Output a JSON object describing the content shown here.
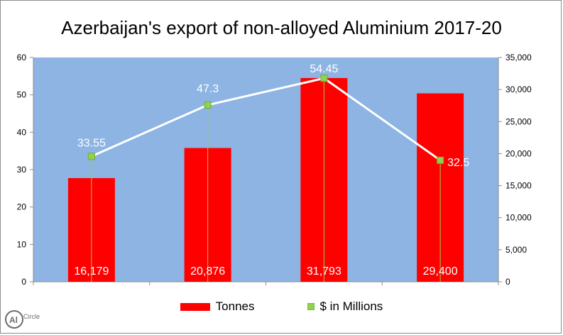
{
  "chart_data": {
    "type": "bar",
    "title": "Azerbaijan's export of non-alloyed Aluminium 2017-20",
    "categories": [
      "",
      "",
      "",
      ""
    ],
    "left_axis": {
      "ticks": [
        "0",
        "10",
        "20",
        "30",
        "40",
        "50",
        "60"
      ],
      "ylim": [
        0,
        60
      ]
    },
    "right_axis": {
      "ticks": [
        "0",
        "5,000",
        "10,000",
        "15,000",
        "20,000",
        "25,000",
        "30,000",
        "35,000"
      ],
      "ylim": [
        0,
        35000
      ]
    },
    "series": [
      {
        "name": "Tonnes",
        "kind": "bar",
        "axis": "right",
        "values": [
          16179,
          20876,
          31793,
          29400
        ],
        "labels": [
          "16,179",
          "20,876",
          "31,793",
          "29,400"
        ],
        "color": "#ff0000"
      },
      {
        "name": "$ in Millions",
        "kind": "line",
        "axis": "left",
        "values": [
          33.55,
          47.3,
          54.45,
          32.5
        ],
        "labels": [
          "33.55",
          "47.3",
          "54.45",
          "32.5"
        ],
        "color": "#ffffff",
        "marker_color": "#92d050"
      }
    ],
    "plot_background": "#8db4e2",
    "grid": false,
    "legend_position": "bottom"
  },
  "logo": {
    "text_main": "Circle",
    "text_prefix": "Al"
  }
}
